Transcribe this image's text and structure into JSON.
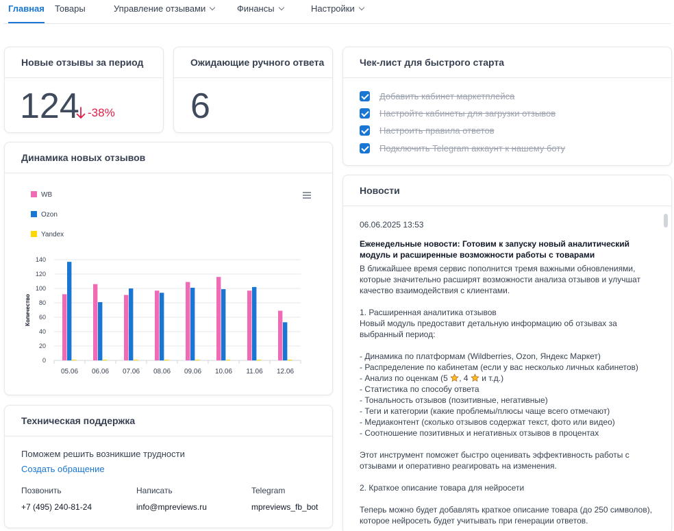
{
  "nav": {
    "items": [
      {
        "label": "Главная",
        "active": true,
        "dropdown": false
      },
      {
        "label": "Товары",
        "active": false,
        "dropdown": false
      },
      {
        "label": "Управление отзывами",
        "active": false,
        "dropdown": true
      },
      {
        "label": "Финансы",
        "active": false,
        "dropdown": true
      },
      {
        "label": "Настройки",
        "active": false,
        "dropdown": true
      }
    ]
  },
  "new_reviews": {
    "title": "Новые отзывы за период",
    "value": "124",
    "delta": "-38%",
    "delta_color": "#e11d48"
  },
  "pending": {
    "title": "Ожидающие ручного ответа",
    "value": "6"
  },
  "checklist": {
    "title": "Чек-лист для быстрого старта",
    "items": [
      {
        "label": "Добавить кабинет маркетплейса",
        "checked": true
      },
      {
        "label": "Настройте кабинеты для загрузки отзывов",
        "checked": true
      },
      {
        "label": "Настроить правила ответов",
        "checked": true
      },
      {
        "label": "Подключить Telegram аккаунт к нашему боту",
        "checked": true
      }
    ]
  },
  "dynamics": {
    "title": "Динамика новых отзывов",
    "menu_icon": "hamburger-menu-icon"
  },
  "chart_data": {
    "type": "bar",
    "categories": [
      "05.06",
      "06.06",
      "07.06",
      "08.06",
      "09.06",
      "10.06",
      "11.06",
      "12.06"
    ],
    "series": [
      {
        "name": "WB",
        "color": "#f06bb5",
        "values": [
          92,
          106,
          91,
          97,
          109,
          116,
          97,
          69
        ]
      },
      {
        "name": "Ozon",
        "color": "#1976d2",
        "values": [
          137,
          81,
          100,
          94,
          101,
          99,
          102,
          53
        ]
      },
      {
        "name": "Yandex",
        "color": "#ffd600",
        "values": [
          1,
          1,
          1,
          1,
          1,
          1,
          1,
          1
        ]
      }
    ],
    "ylabel": "Количество",
    "xlabel": "",
    "ylim": [
      0,
      140
    ],
    "yticks": [
      "0",
      "20",
      "40",
      "60",
      "80",
      "100",
      "120",
      "140"
    ],
    "grid": true,
    "legend_position": "top-left"
  },
  "support": {
    "title": "Техническая поддержка",
    "subtitle": "Поможем решить возникшие трудности",
    "link": "Создать обращение",
    "link_color": "#1976d2",
    "columns": [
      {
        "label": "Позвонить",
        "value": "+7 (495) 240-81-24"
      },
      {
        "label": "Написать",
        "value": "info@mpreviews.ru"
      },
      {
        "label": "Telegram",
        "value": "mpreviews_fb_bot"
      }
    ]
  },
  "news": {
    "title": "Новости",
    "date": "06.06.2025 13:53",
    "headline": "Еженедельные новости: Готовим к запуску новый аналитический модуль и расширенные возможности работы с товарами",
    "p1": "В ближайшее время сервис пополнится тремя важными обновлениями, которые значительно расширят возможности анализа отзывов и улучшат качество взаимодействия с клиентами.",
    "p2_title": "1. Расширенная аналитика отзывов",
    "p2": "Новый модуль предоставит детальную информацию об отзывах за выбранный период:",
    "bullets_before_stars": [
      "- Динамика по платформам (Wildberries, Ozon, Яндекс Маркет)",
      "- Распределение по кабинетам (если у вас несколько личных кабинетов)"
    ],
    "star_line": {
      "prefix": "- Анализ по оценкам (5",
      "middle": ", 4",
      "suffix": "и т.д.)"
    },
    "bullets_after_stars": [
      "- Статистика по способу ответа",
      "- Тональность отзывов (позитивные, негативные)",
      "- Теги и категории (какие проблемы/плюсы чаще всего отмечают)",
      "- Медиаконтент (сколько отзывов содержат текст, фото или видео)",
      "- Соотношение позитивных и негативных отзывов в процентах"
    ],
    "p3": "Этот инструмент поможет быстро оценивать эффективность работы с отзывами и оперативно реагировать на изменения.",
    "p4_title": "2. Краткое описание товара для нейросети",
    "p4": "Теперь можно будет добавлять краткое описание товара (до 250 символов), которое нейросеть будет учитывать при генерации ответов."
  }
}
